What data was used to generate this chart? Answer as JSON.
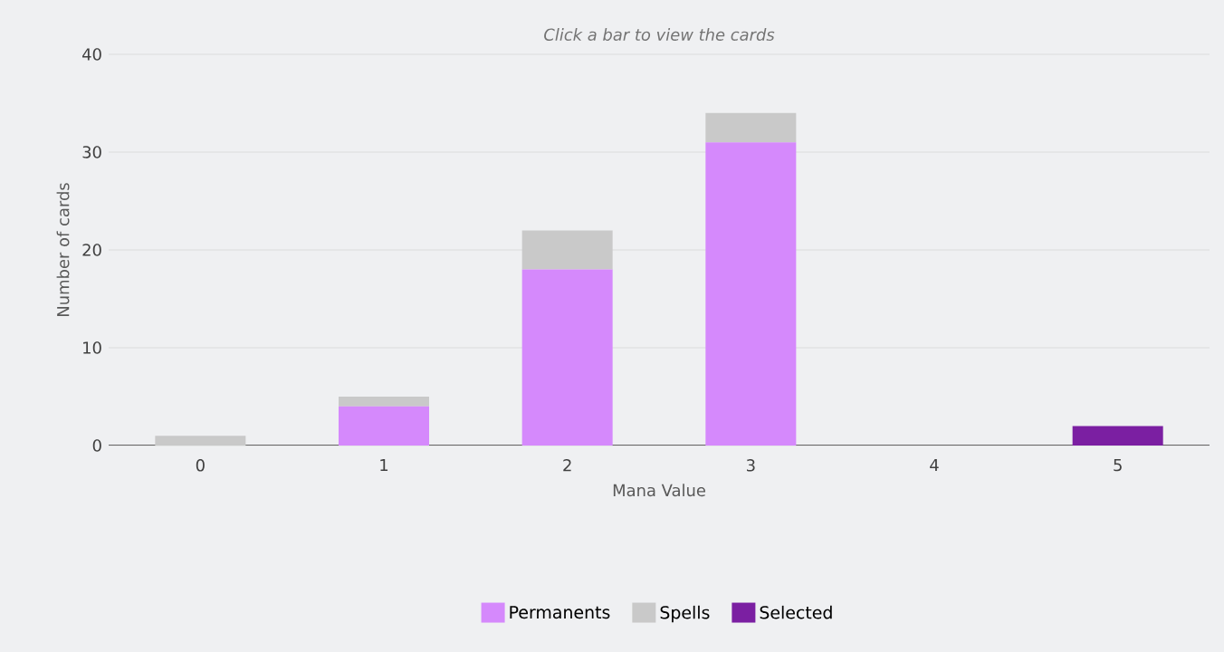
{
  "chart_data": {
    "type": "bar",
    "title": "Click a bar to view the cards",
    "xlabel": "Mana Value",
    "ylabel": "Number of cards",
    "categories": [
      "0",
      "1",
      "2",
      "3",
      "4",
      "5"
    ],
    "series": [
      {
        "name": "Permanents",
        "color": "#d589fc",
        "values": [
          0,
          4,
          18,
          31,
          0,
          0
        ]
      },
      {
        "name": "Spells",
        "color": "#c9c9c9",
        "values": [
          1,
          1,
          4,
          3,
          0,
          0
        ]
      },
      {
        "name": "Selected",
        "color": "#7b1fa2",
        "values": [
          0,
          0,
          0,
          0,
          0,
          2
        ]
      }
    ],
    "stacked": true,
    "ylim": [
      0,
      40
    ],
    "yticks": [
      0,
      10,
      20,
      30,
      40
    ],
    "grid": "y",
    "legend": "bottom"
  }
}
